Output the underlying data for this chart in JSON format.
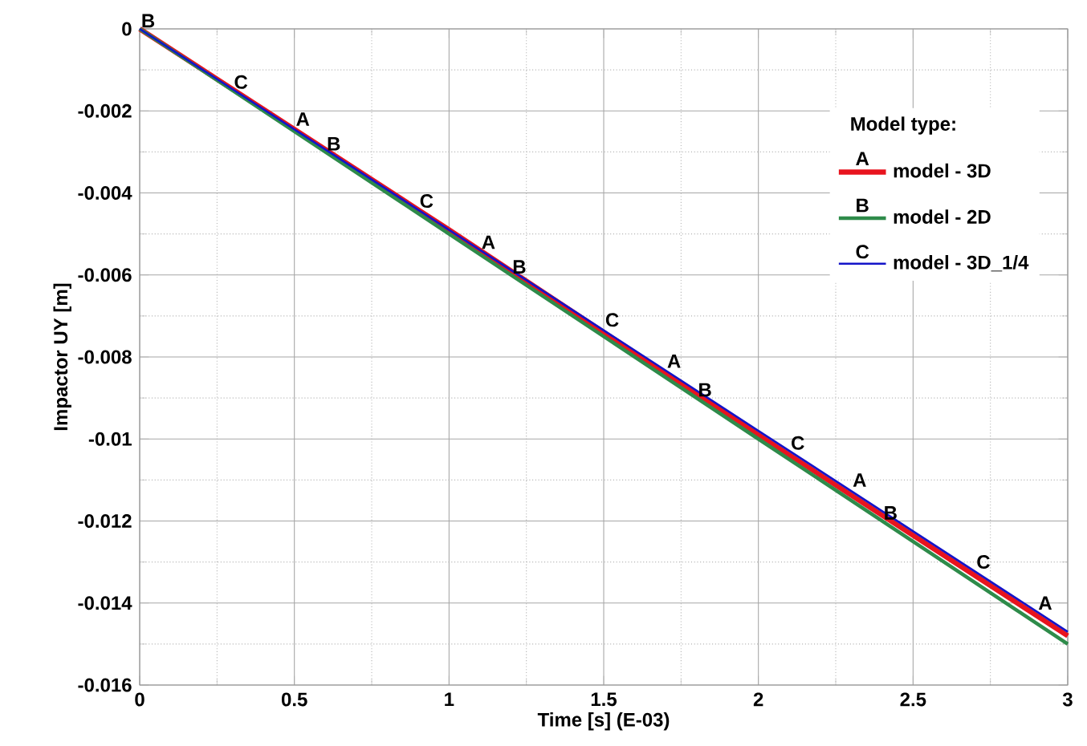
{
  "chart_data": {
    "type": "line",
    "xlabel": "Time [s] (E-03)",
    "ylabel": "Impactor UY [m]",
    "legend_title": "Model type:",
    "legend": "top right",
    "grid": true,
    "marker": "none",
    "line_style": "solid",
    "x": [
      0,
      1,
      2,
      3
    ],
    "series": [
      {
        "name": "model - 3D",
        "color": "#e8141e",
        "values": [
          0,
          -0.0049,
          -0.0099,
          -0.0148
        ]
      },
      {
        "name": "model - 2D",
        "color": "#2e8b4a",
        "values": [
          0,
          -0.005,
          -0.01,
          -0.015
        ]
      },
      {
        "name": "model - 3D_1/4",
        "color": "#1414c8",
        "values": [
          0,
          -0.0049,
          -0.0098,
          -0.0147
        ]
      }
    ],
    "xlim": [
      0,
      3
    ],
    "xticks": [
      0,
      0.5,
      1,
      1.5,
      2,
      2.5,
      3
    ],
    "ylim": [
      -0.016,
      0
    ],
    "yticks": [
      -0.016,
      -0.014,
      -0.012,
      -0.01,
      -0.008,
      -0.006,
      -0.004,
      -0.002,
      0
    ],
    "annotations": [
      {
        "text": "A",
        "x": 0.5,
        "y": -0.0024
      },
      {
        "text": "A",
        "x": 1.1,
        "y": -0.0054
      },
      {
        "text": "A",
        "x": 1.7,
        "y": -0.0083
      },
      {
        "text": "A",
        "x": 2.3,
        "y": -0.0112
      },
      {
        "text": "A",
        "x": 2.9,
        "y": -0.0142
      },
      {
        "text": "B",
        "x": 0,
        "y": 0
      },
      {
        "text": "B",
        "x": 0.6,
        "y": -0.003
      },
      {
        "text": "B",
        "x": 1.2,
        "y": -0.006
      },
      {
        "text": "B",
        "x": 1.8,
        "y": -0.009
      },
      {
        "text": "B",
        "x": 2.4,
        "y": -0.012
      },
      {
        "text": "C",
        "x": 0.3,
        "y": -0.0015
      },
      {
        "text": "C",
        "x": 0.9,
        "y": -0.0044
      },
      {
        "text": "C",
        "x": 1.5,
        "y": -0.0073
      },
      {
        "text": "C",
        "x": 2.1,
        "y": -0.0103
      },
      {
        "text": "C",
        "x": 2.7,
        "y": -0.0132
      }
    ]
  }
}
